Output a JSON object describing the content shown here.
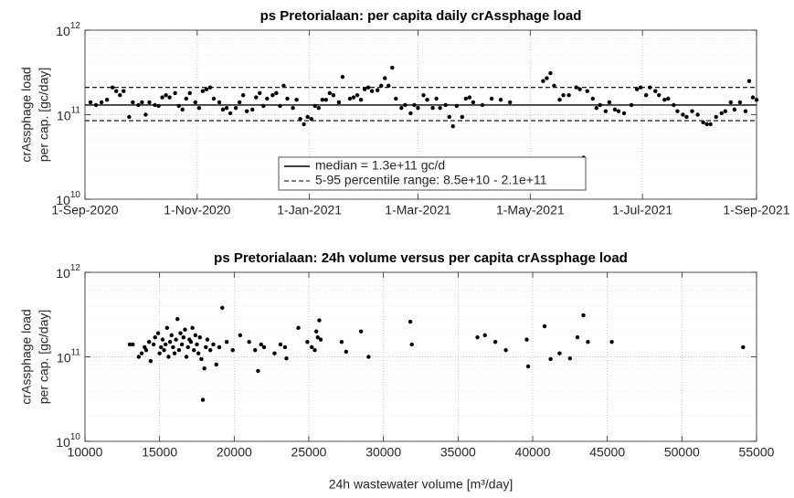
{
  "chart_data": [
    {
      "type": "scatter",
      "title": "ps Pretorialaan: per capita daily crAssphage load",
      "ylabel": [
        "crAssphage load",
        "per cap. [gc/day]"
      ],
      "log_y": true,
      "grid": true,
      "minor_grid": true,
      "color": "#000000",
      "xlim": [
        "2020-09-01",
        "2021-09-01"
      ],
      "xticks": [
        {
          "value": "2020-09-01",
          "label": "1-Sep-2020"
        },
        {
          "value": "2020-11-01",
          "label": "1-Nov-2020"
        },
        {
          "value": "2021-01-01",
          "label": "1-Jan-2021"
        },
        {
          "value": "2021-03-01",
          "label": "1-Mar-2021"
        },
        {
          "value": "2021-05-01",
          "label": "1-May-2021"
        },
        {
          "value": "2021-07-01",
          "label": "1-Jul-2021"
        },
        {
          "value": "2021-09-01",
          "label": "1-Sep-2021"
        }
      ],
      "ylim": [
        10000000000.0,
        1000000000000.0
      ],
      "yticks": [
        {
          "value": 10000000000.0,
          "label": "10",
          "sup": "10"
        },
        {
          "value": 100000000000.0,
          "label": "10",
          "sup": "11"
        },
        {
          "value": 1000000000000.0,
          "label": "10",
          "sup": "12"
        }
      ],
      "median": 130000000000.0,
      "median_label": "median = 1.3e+11 gc/d",
      "percentiles": [
        85000000000.0,
        210000000000.0
      ],
      "percentile_label": "5-95 percentile range: 8.5e+10 - 2.1e+11",
      "x": [
        "2020-09-04",
        "2020-09-07",
        "2020-09-10",
        "2020-09-13",
        "2020-09-16",
        "2020-09-18",
        "2020-09-20",
        "2020-09-22",
        "2020-09-25",
        "2020-09-27",
        "2020-09-30",
        "2020-10-02",
        "2020-10-04",
        "2020-10-06",
        "2020-10-09",
        "2020-10-11",
        "2020-10-13",
        "2020-10-15",
        "2020-10-17",
        "2020-10-20",
        "2020-10-22",
        "2020-10-24",
        "2020-10-26",
        "2020-10-28",
        "2020-10-31",
        "2020-11-02",
        "2020-11-04",
        "2020-11-06",
        "2020-11-08",
        "2020-11-10",
        "2020-11-13",
        "2020-11-15",
        "2020-11-17",
        "2020-11-19",
        "2020-11-22",
        "2020-11-24",
        "2020-11-26",
        "2020-11-28",
        "2020-12-01",
        "2020-12-03",
        "2020-12-05",
        "2020-12-07",
        "2020-12-09",
        "2020-12-12",
        "2020-12-14",
        "2020-12-16",
        "2020-12-18",
        "2020-12-20",
        "2020-12-23",
        "2020-12-25",
        "2020-12-27",
        "2020-12-29",
        "2020-12-31",
        "2021-01-02",
        "2021-01-04",
        "2021-01-06",
        "2021-01-08",
        "2021-01-10",
        "2021-01-12",
        "2021-01-14",
        "2021-01-17",
        "2021-01-19",
        "2021-01-23",
        "2021-01-25",
        "2021-01-27",
        "2021-01-29",
        "2021-01-31",
        "2021-02-02",
        "2021-02-04",
        "2021-02-07",
        "2021-02-09",
        "2021-02-11",
        "2021-02-13",
        "2021-02-15",
        "2021-02-17",
        "2021-02-20",
        "2021-02-22",
        "2021-02-25",
        "2021-02-27",
        "2021-03-01",
        "2021-03-04",
        "2021-03-06",
        "2021-03-09",
        "2021-03-11",
        "2021-03-13",
        "2021-03-16",
        "2021-03-18",
        "2021-03-20",
        "2021-03-22",
        "2021-03-25",
        "2021-03-27",
        "2021-03-29",
        "2021-03-31",
        "2021-04-05",
        "2021-04-10",
        "2021-04-15",
        "2021-04-20",
        "2021-05-08",
        "2021-05-10",
        "2021-05-12",
        "2021-05-14",
        "2021-05-17",
        "2021-05-19",
        "2021-05-22",
        "2021-05-26",
        "2021-05-28",
        "2021-05-30",
        "2021-06-01",
        "2021-06-04",
        "2021-06-06",
        "2021-06-08",
        "2021-06-11",
        "2021-06-13",
        "2021-06-16",
        "2021-06-18",
        "2021-06-21",
        "2021-06-25",
        "2021-06-28",
        "2021-06-30",
        "2021-07-03",
        "2021-07-05",
        "2021-07-08",
        "2021-07-10",
        "2021-07-13",
        "2021-07-15",
        "2021-07-18",
        "2021-07-20",
        "2021-07-23",
        "2021-07-25",
        "2021-07-28",
        "2021-07-31",
        "2021-08-03",
        "2021-08-05",
        "2021-08-07",
        "2021-08-10",
        "2021-08-13",
        "2021-08-15",
        "2021-08-18",
        "2021-08-20",
        "2021-08-23",
        "2021-08-26",
        "2021-08-28",
        "2021-08-30",
        "2021-09-01"
      ],
      "values": [
        140000000000.0,
        130000000000.0,
        140000000000.0,
        150000000000.0,
        210000000000.0,
        190000000000.0,
        170000000000.0,
        190000000000.0,
        94000000000.0,
        140000000000.0,
        130000000000.0,
        140000000000.0,
        100000000000.0,
        140000000000.0,
        130000000000.0,
        127000000000.0,
        160000000000.0,
        170000000000.0,
        160000000000.0,
        180000000000.0,
        127000000000.0,
        115000000000.0,
        155000000000.0,
        180000000000.0,
        140000000000.0,
        120000000000.0,
        190000000000.0,
        200000000000.0,
        210000000000.0,
        155000000000.0,
        140000000000.0,
        115000000000.0,
        120000000000.0,
        104000000000.0,
        120000000000.0,
        140000000000.0,
        170000000000.0,
        110000000000.0,
        115000000000.0,
        160000000000.0,
        180000000000.0,
        127000000000.0,
        155000000000.0,
        170000000000.0,
        180000000000.0,
        127000000000.0,
        220000000000.0,
        155000000000.0,
        120000000000.0,
        150000000000.0,
        89000000000.0,
        77000000000.0,
        94000000000.0,
        89000000000.0,
        127000000000.0,
        120000000000.0,
        150000000000.0,
        150000000000.0,
        180000000000.0,
        170000000000.0,
        140000000000.0,
        280000000000.0,
        155000000000.0,
        160000000000.0,
        170000000000.0,
        150000000000.0,
        200000000000.0,
        210000000000.0,
        190000000000.0,
        195000000000.0,
        220000000000.0,
        270000000000.0,
        220000000000.0,
        360000000000.0,
        155000000000.0,
        120000000000.0,
        130000000000.0,
        104000000000.0,
        130000000000.0,
        120000000000.0,
        170000000000.0,
        150000000000.0,
        120000000000.0,
        155000000000.0,
        120000000000.0,
        130000000000.0,
        94000000000.0,
        73000000000.0,
        127000000000.0,
        94000000000.0,
        155000000000.0,
        160000000000.0,
        140000000000.0,
        130000000000.0,
        155000000000.0,
        150000000000.0,
        140000000000.0,
        250000000000.0,
        270000000000.0,
        310000000000.0,
        220000000000.0,
        150000000000.0,
        170000000000.0,
        170000000000.0,
        210000000000.0,
        200000000000.0,
        31000000000.0,
        190000000000.0,
        155000000000.0,
        120000000000.0,
        130000000000.0,
        110000000000.0,
        140000000000.0,
        115000000000.0,
        110000000000.0,
        104000000000.0,
        130000000000.0,
        200000000000.0,
        210000000000.0,
        170000000000.0,
        210000000000.0,
        190000000000.0,
        170000000000.0,
        150000000000.0,
        155000000000.0,
        130000000000.0,
        110000000000.0,
        100000000000.0,
        94000000000.0,
        110000000000.0,
        100000000000.0,
        81000000000.0,
        77000000000.0,
        77000000000.0,
        94000000000.0,
        104000000000.0,
        110000000000.0,
        140000000000.0,
        115000000000.0,
        140000000000.0,
        110000000000.0,
        250000000000.0,
        160000000000.0,
        150000000000.0
      ]
    },
    {
      "type": "scatter",
      "title": "ps Pretorialaan: 24h volume versus per capita crAssphage load",
      "ylabel": [
        "crAssphage load",
        "per cap. [gc/day]"
      ],
      "xlabel": "24h wastewater volume [m³/day]",
      "log_y": true,
      "grid": true,
      "minor_grid": true,
      "color": "#000000",
      "xlim": [
        10000,
        55000
      ],
      "xticks": [
        10000,
        15000,
        20000,
        25000,
        30000,
        35000,
        40000,
        45000,
        50000,
        55000
      ],
      "ylim": [
        10000000000.0,
        1000000000000.0
      ],
      "yticks": [
        {
          "value": 10000000000.0,
          "label": "10",
          "sup": "10"
        },
        {
          "value": 100000000000.0,
          "label": "10",
          "sup": "11"
        },
        {
          "value": 1000000000000.0,
          "label": "10",
          "sup": "12"
        }
      ],
      "x": [
        13000,
        13200,
        13600,
        13800,
        14000,
        14100,
        14300,
        14400,
        14600,
        14700,
        14900,
        15000,
        15100,
        15200,
        15300,
        15400,
        15500,
        15600,
        15700,
        15800,
        15900,
        16000,
        16100,
        16200,
        16300,
        16400,
        16500,
        16600,
        16700,
        16800,
        16900,
        17000,
        17100,
        17200,
        17300,
        17400,
        17500,
        17600,
        17700,
        17800,
        17900,
        18000,
        18100,
        18200,
        18400,
        18600,
        18800,
        19000,
        19200,
        19500,
        19900,
        20400,
        21000,
        21400,
        21600,
        21800,
        22000,
        22700,
        23100,
        23400,
        23500,
        24300,
        24900,
        25200,
        25400,
        25500,
        25600,
        25700,
        25800,
        27200,
        27500,
        28500,
        29000,
        31800,
        31900,
        36300,
        36800,
        37500,
        38200,
        39600,
        39700,
        40800,
        41200,
        41800,
        42500,
        43000,
        43400,
        43700,
        45300,
        54100
      ],
      "values": [
        140000000000.0,
        140000000000.0,
        100000000000.0,
        110000000000.0,
        130000000000.0,
        120000000000.0,
        150000000000.0,
        89000000000.0,
        140000000000.0,
        170000000000.0,
        190000000000.0,
        110000000000.0,
        130000000000.0,
        160000000000.0,
        120000000000.0,
        140000000000.0,
        220000000000.0,
        100000000000.0,
        150000000000.0,
        180000000000.0,
        130000000000.0,
        110000000000.0,
        160000000000.0,
        280000000000.0,
        120000000000.0,
        190000000000.0,
        140000000000.0,
        170000000000.0,
        210000000000.0,
        100000000000.0,
        130000000000.0,
        160000000000.0,
        150000000000.0,
        220000000000.0,
        120000000000.0,
        180000000000.0,
        140000000000.0,
        110000000000.0,
        170000000000.0,
        94000000000.0,
        31000000000.0,
        73000000000.0,
        130000000000.0,
        160000000000.0,
        120000000000.0,
        140000000000.0,
        81000000000.0,
        130000000000.0,
        380000000000.0,
        150000000000.0,
        120000000000.0,
        180000000000.0,
        150000000000.0,
        120000000000.0,
        68000000000.0,
        140000000000.0,
        130000000000.0,
        110000000000.0,
        140000000000.0,
        130000000000.0,
        96000000000.0,
        220000000000.0,
        150000000000.0,
        130000000000.0,
        120000000000.0,
        200000000000.0,
        170000000000.0,
        270000000000.0,
        160000000000.0,
        150000000000.0,
        115000000000.0,
        200000000000.0,
        100000000000.0,
        260000000000.0,
        140000000000.0,
        170000000000.0,
        180000000000.0,
        150000000000.0,
        120000000000.0,
        160000000000.0,
        77000000000.0,
        230000000000.0,
        94000000000.0,
        110000000000.0,
        96000000000.0,
        170000000000.0,
        310000000000.0,
        150000000000.0,
        150000000000.0,
        130000000000.0
      ]
    }
  ]
}
